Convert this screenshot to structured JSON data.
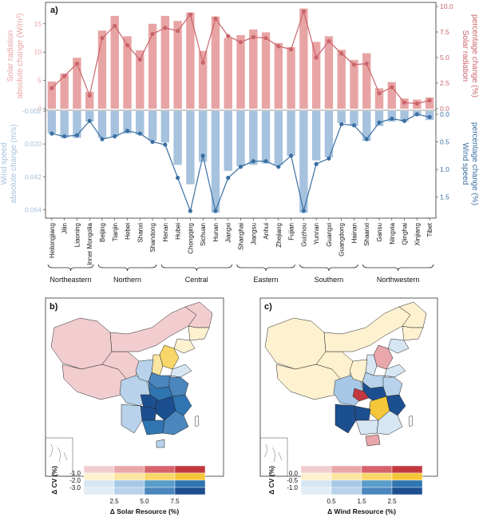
{
  "chart_data": {
    "type": "bar",
    "panel_label": "a)",
    "provinces": [
      "Heilongjiang",
      "Jilin",
      "Liaoning",
      "Inner Mongolia",
      "Beijing",
      "Tianjin",
      "Hebei",
      "Shanxi",
      "Shandong",
      "Henan",
      "Hubei",
      "Chongqing",
      "Sichuan",
      "Hunan",
      "Jiangxi",
      "Shanghai",
      "Jiangsu",
      "Anhui",
      "Zhejiang",
      "Fujian",
      "Guizhou",
      "Yunnan",
      "Guangxi",
      "Guangdong",
      "Hainan",
      "Shaanxi",
      "Gansu",
      "Ningxia",
      "Qinghai",
      "Xinjiang",
      "Tibet"
    ],
    "regions": [
      {
        "name": "Northeastern",
        "first": 0,
        "last": 3
      },
      {
        "name": "Northern",
        "first": 4,
        "last": 8
      },
      {
        "name": "Central",
        "first": 9,
        "last": 14
      },
      {
        "name": "Eastern",
        "first": 15,
        "last": 19
      },
      {
        "name": "Southern",
        "first": 20,
        "last": 24
      },
      {
        "name": "Northwestern",
        "first": 25,
        "last": 30
      }
    ],
    "solar": {
      "left_label_line1": "Solar radiation",
      "left_label_line2": "absolute change (W/m²)",
      "right_label_line1": "Solar radiation",
      "right_label_line2": "percentage change (%)",
      "left_ticks": [
        "0",
        "5",
        "10",
        "15"
      ],
      "right_ticks": [
        "0.0",
        "2.5",
        "5.0",
        "7.5",
        "10.0"
      ],
      "left_ylim": [
        0,
        18.5
      ],
      "right_ylim": [
        0,
        10
      ],
      "bar_color": "#e8a4a4",
      "line_color": "#c9646a",
      "absolute_change": [
        4.8,
        6.2,
        9.0,
        3.0,
        13.8,
        16.4,
        12.8,
        10.3,
        15.0,
        16.4,
        15.5,
        17.0,
        10.2,
        16.3,
        12.5,
        13.0,
        14.0,
        13.5,
        11.6,
        10.9,
        17.7,
        11.8,
        12.8,
        10.4,
        8.6,
        9.8,
        3.6,
        4.7,
        1.8,
        1.6,
        2.0
      ],
      "percentage_change": [
        2.0,
        3.2,
        4.4,
        1.3,
        6.9,
        8.1,
        6.2,
        4.8,
        7.3,
        7.9,
        7.6,
        9.2,
        4.5,
        8.8,
        7.1,
        6.5,
        7.0,
        6.9,
        6.1,
        5.8,
        9.5,
        5.0,
        6.6,
        5.4,
        4.3,
        4.4,
        1.5,
        2.1,
        0.6,
        0.5,
        0.8
      ]
    },
    "wind": {
      "left_label_line1": "Wind speed",
      "left_label_line2": "absolute change (m/s)",
      "right_label_line1": "Wind speed",
      "right_label_line2": "percentage change (%)",
      "left_ticks": [
        "-0.002",
        "0.020",
        "0.042",
        "0.064"
      ],
      "left_tick_values": [
        -0.002,
        0.02,
        0.042,
        0.064
      ],
      "right_ticks": [
        "0.0",
        "0.5",
        "1.0",
        "1.5"
      ],
      "left_ylim": [
        -0.002,
        0.067
      ],
      "right_ylim": [
        0,
        1.75
      ],
      "bar_color": "#a6c2de",
      "line_color": "#3b6fa2",
      "absolute_change": [
        0.013,
        0.016,
        0.016,
        0.005,
        0.016,
        0.015,
        0.013,
        0.014,
        0.018,
        0.019,
        0.034,
        0.047,
        0.032,
        0.066,
        0.038,
        0.035,
        0.034,
        0.033,
        0.034,
        0.028,
        0.066,
        0.031,
        0.029,
        0.006,
        0.008,
        0.018,
        0.008,
        0.005,
        0.005,
        0.001,
        0.004
      ],
      "percentage_change": [
        0.35,
        0.4,
        0.38,
        0.12,
        0.45,
        0.4,
        0.3,
        0.35,
        0.5,
        0.55,
        1.15,
        1.75,
        0.75,
        1.75,
        1.15,
        0.95,
        0.85,
        0.85,
        0.95,
        0.75,
        1.75,
        0.9,
        0.8,
        0.18,
        0.2,
        0.45,
        0.15,
        0.08,
        0.12,
        0.0,
        0.05
      ]
    }
  },
  "maps": {
    "b": {
      "label": "b)",
      "legend_title": "Δ CV (%)",
      "legend_row_labels": [
        "-1.0",
        "-2.0",
        "-3.0"
      ],
      "legend_col_labels": [
        "2.5",
        "5.0",
        "7.5"
      ],
      "legend_xlabel": "Δ Solar Resource (%)",
      "palette": [
        [
          "#f2cdd0",
          "#e9a6ab",
          "#d6636b",
          "#c2383f"
        ],
        [
          "#fdf1cf",
          "#fbe5a0",
          "#f8d668",
          "#f4c63a"
        ],
        [
          "#d6e6f3",
          "#a6c8e6",
          "#5a9ccb",
          "#2f75b2"
        ],
        [
          "#e2edf6",
          "#b7d2ea",
          "#4b86bd",
          "#1c4f8f"
        ]
      ]
    },
    "c": {
      "label": "c)",
      "legend_title": "Δ CV (%)",
      "legend_row_labels": [
        "0.0",
        "-0.5",
        "-1.0"
      ],
      "legend_col_labels": [
        "0.5",
        "1.5",
        "2.5"
      ],
      "legend_xlabel": "Δ Wind Resource (%)",
      "palette": [
        [
          "#f2cdd0",
          "#e9a6ab",
          "#d6636b",
          "#c2383f"
        ],
        [
          "#fdf1cf",
          "#fbe5a0",
          "#f8d668",
          "#f4c63a"
        ],
        [
          "#d6e6f3",
          "#a6c8e6",
          "#5a9ccb",
          "#2f75b2"
        ],
        [
          "#e2edf6",
          "#b7d2ea",
          "#4b86bd",
          "#1c4f8f"
        ]
      ]
    }
  }
}
